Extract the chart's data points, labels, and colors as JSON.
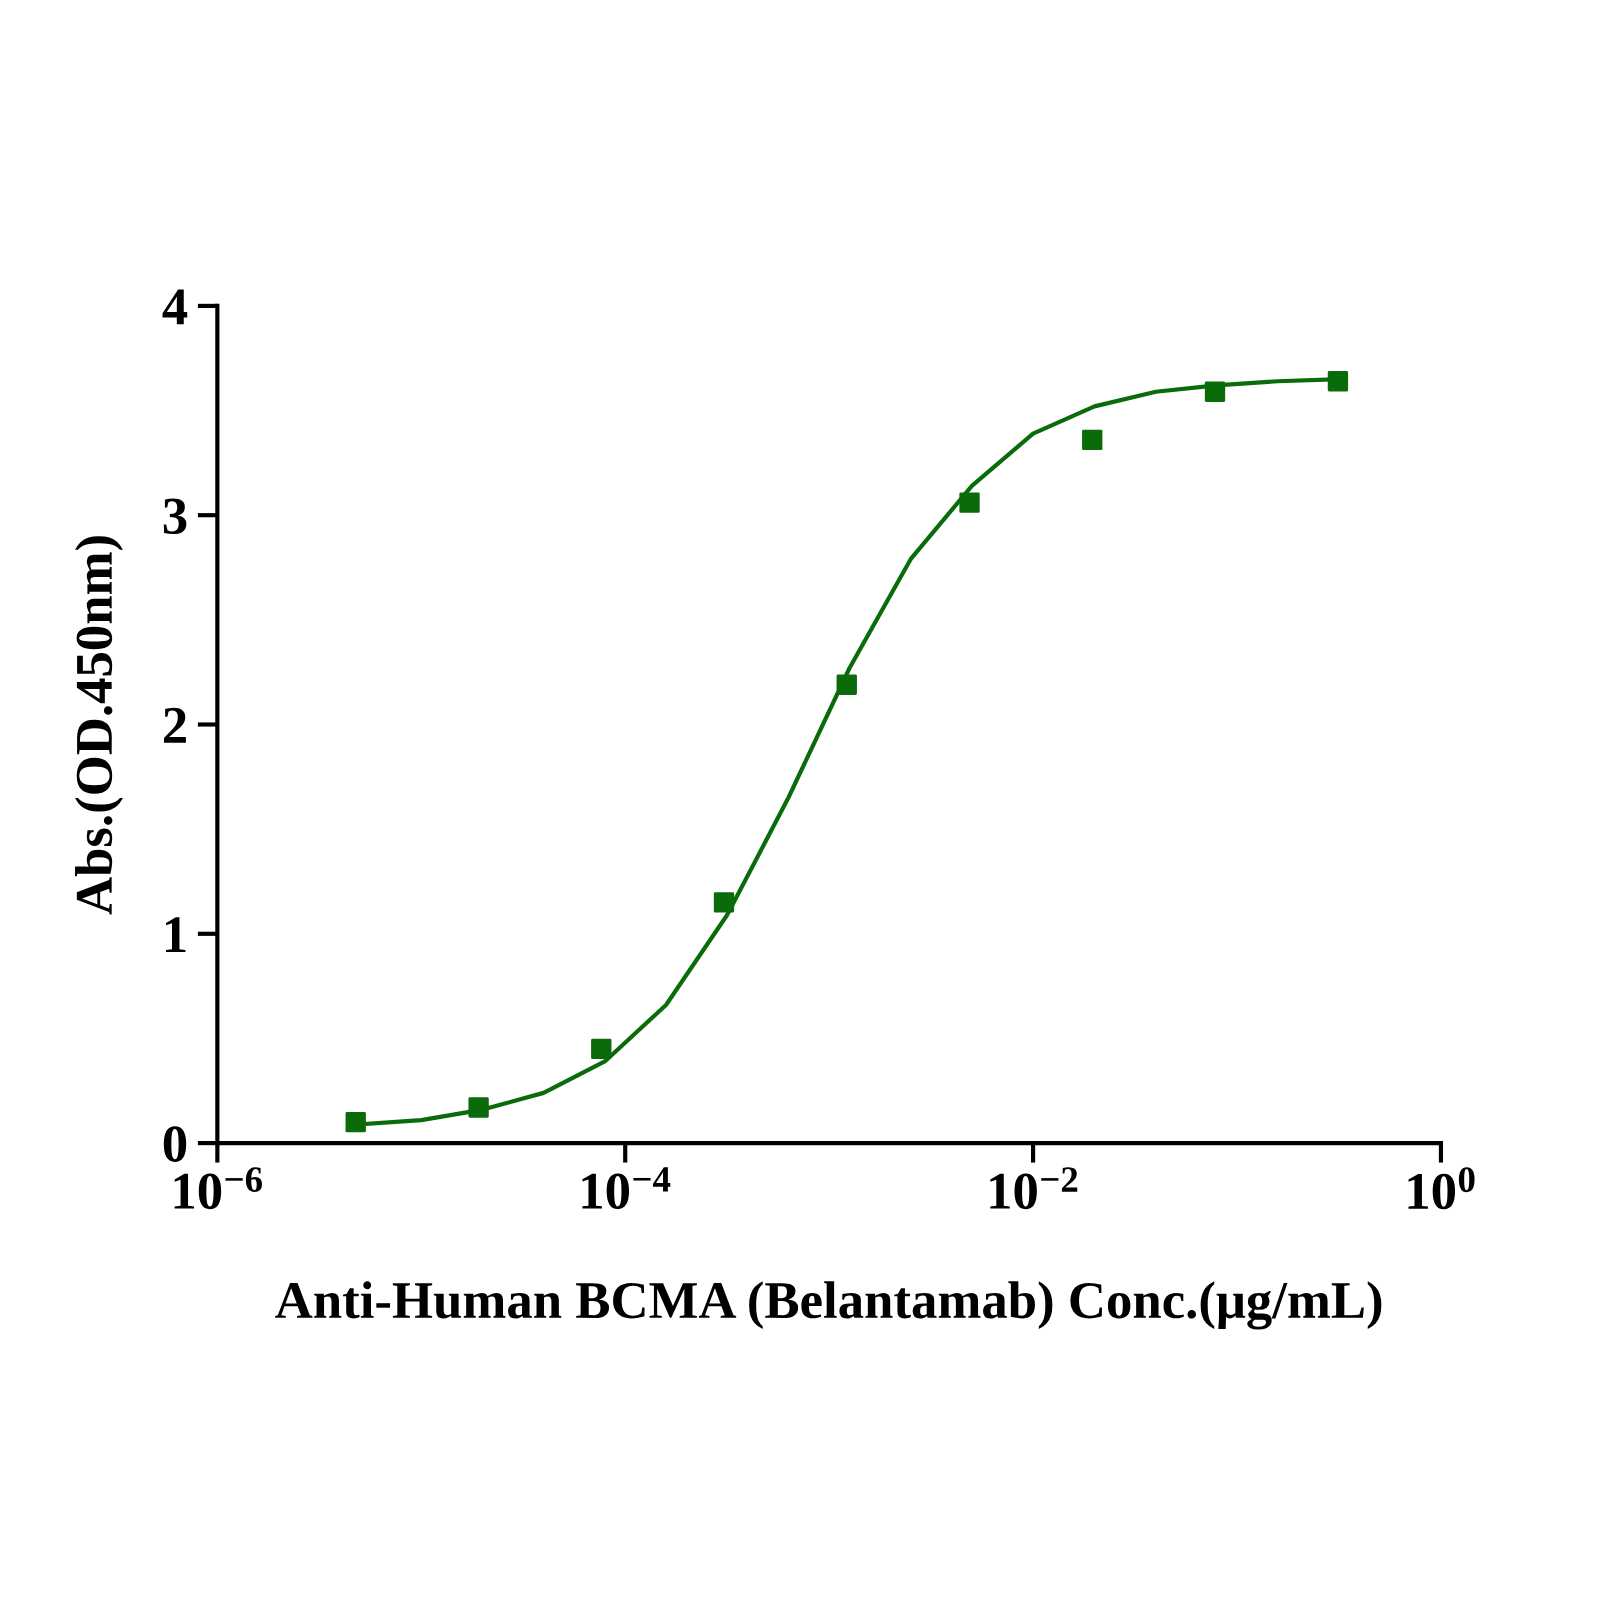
{
  "chart_data": {
    "type": "scatter",
    "xlabel": "Anti-Human BCMA (Belantamab) Conc.(μg/mL)",
    "ylabel": "Abs.(OD.450nm)",
    "log": "x",
    "xlim": [
      1e-06,
      1
    ],
    "ylim": [
      0,
      4
    ],
    "xticks": [
      {
        "value": 1e-06,
        "label": "10$^{−6}$"
      },
      {
        "value": 0.0001,
        "label": "10$^{−4}$"
      },
      {
        "value": 0.01,
        "label": "10$^{−2}$"
      },
      {
        "value": 1,
        "label": "10$^{0}$"
      }
    ],
    "yticks": [
      0,
      1,
      2,
      3,
      4
    ],
    "grid": false,
    "legend": false,
    "series": [
      {
        "color": "#0a6b0a",
        "marker": "square",
        "x": [
          4.77e-06,
          1.91e-05,
          7.63e-05,
          0.000305,
          0.00122,
          0.00488,
          0.0195,
          0.078,
          0.3125
        ],
        "values": [
          0.1,
          0.17,
          0.45,
          1.15,
          2.19,
          3.06,
          3.36,
          3.59,
          3.64
        ]
      },
      {
        "type": "line",
        "color": "#0a6b0a",
        "marker": "none",
        "line_style": "solid",
        "x": [
          5.01e-06,
          1e-05,
          2e-05,
          3.98e-05,
          7.94e-05,
          0.0001585,
          0.000316,
          0.000631,
          0.001259,
          0.00251,
          0.00501,
          0.01,
          0.02,
          0.04,
          0.079,
          0.158,
          0.316
        ],
        "values": [
          0.09,
          0.11,
          0.16,
          0.24,
          0.39,
          0.66,
          1.09,
          1.65,
          2.27,
          2.79,
          3.14,
          3.39,
          3.52,
          3.59,
          3.62,
          3.64,
          3.65
        ]
      }
    ]
  }
}
